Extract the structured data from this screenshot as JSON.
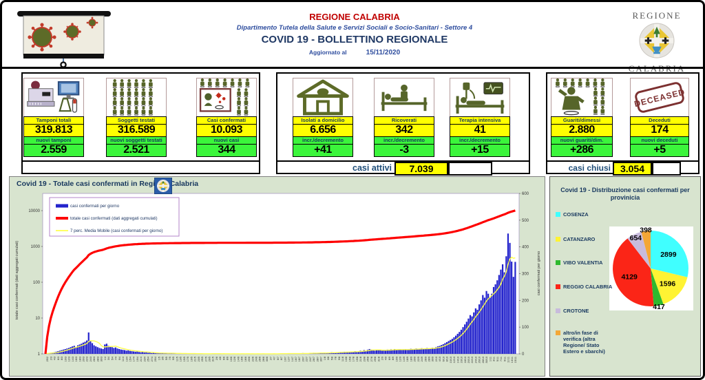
{
  "header": {
    "title1": "REGIONE CALABRIA",
    "subtitle": "Dipartimento Tutela della Salute e Servizi Sociali e Socio-Sanitari - Settore 4",
    "title2": "COVID 19 - BOLLETTINO REGIONALE",
    "updated_label": "Aggiornato al",
    "updated_date": "15/11/2020",
    "logo_region_top": "REGIONE",
    "logo_region_bottom": "CALABRIA"
  },
  "colors": {
    "header_red": "#c00000",
    "navy": "#17375e",
    "yellow_highlight": "#ffff00",
    "green_highlight": "#3bf53b",
    "panel_green": "#d8e4cf",
    "bar_blue": "#2323cc",
    "line_red": "#fe0000",
    "line_yellow": "#ffff4d"
  },
  "stats": {
    "cards": [
      {
        "title": "Tamponi totali",
        "value": "319.813",
        "sub_label": "nuovi tamponi",
        "sub_value": "2.559",
        "icon": "lab-tests-icon"
      },
      {
        "title": "Soggetti testati",
        "value": "316.589",
        "sub_label": "nuovi soggetti testati",
        "sub_value": "2.521",
        "icon": "people-grid-icon"
      },
      {
        "title": "Casi confermati",
        "value": "10.093",
        "sub_label": "nuovi casi",
        "sub_value": "344",
        "icon": "infected-person-icon"
      },
      {
        "title": "Isolati a domicilio",
        "value": "6.656",
        "sub_label": "incr./decremento",
        "sub_value": "+41",
        "icon": "home-icon"
      },
      {
        "title": "Ricoverati",
        "value": "342",
        "sub_label": "incr./decremento",
        "sub_value": "-3",
        "icon": "hospital-bed-icon"
      },
      {
        "title": "Terapia intensiva",
        "value": "41",
        "sub_label": "incr./decremento",
        "sub_value": "+15",
        "icon": "icu-bed-icon"
      },
      {
        "title": "Guariti/dimessi",
        "value": "2.880",
        "sub_label": "nuovi guariti/dim.",
        "sub_value": "+286",
        "icon": "recovered-person-icon"
      },
      {
        "title": "Deceduti",
        "value": "174",
        "sub_label": "nuovi deceduti",
        "sub_value": "+5",
        "icon": "deceased-stamp-icon"
      }
    ],
    "casi_attivi_label": "casi attivi",
    "casi_attivi_value": "7.039",
    "casi_chiusi_label": "casi chiusi",
    "casi_chiusi_value": "3.054",
    "deceased_stamp_text": "DECEASED"
  },
  "chart_data": [
    {
      "type": "bar",
      "title": "Covid 19 - Totale casi confermati in Regione Calabria",
      "x_months": [
        [
          2,
          28,
          29
        ],
        [
          3,
          1,
          31
        ],
        [
          4,
          1,
          30
        ],
        [
          5,
          1,
          31
        ],
        [
          6,
          1,
          30
        ],
        [
          7,
          1,
          31
        ],
        [
          8,
          1,
          31
        ],
        [
          9,
          1,
          30
        ],
        [
          10,
          1,
          31
        ],
        [
          11,
          1,
          15
        ]
      ],
      "tick_label_every": 2,
      "left_axis": {
        "label": "totale casi confermati (dati aggregati cumulati)",
        "scale": "log",
        "ticks": [
          1,
          10,
          100,
          1000,
          10000
        ]
      },
      "right_axis": {
        "label": "casi confermati per giorno",
        "min": 0,
        "max": 600,
        "ticks": [
          0,
          100,
          200,
          300,
          400,
          500,
          600
        ]
      },
      "series": [
        {
          "name": "casi confermati per giorno",
          "type": "bar",
          "axis": "right",
          "color": "#2323cc",
          "values": [
            1,
            2,
            3,
            4,
            5,
            6,
            8,
            10,
            12,
            14,
            16,
            18,
            20,
            22,
            25,
            28,
            30,
            26,
            32,
            35,
            38,
            42,
            45,
            50,
            80,
            50,
            40,
            32,
            28,
            25,
            22,
            20,
            18,
            35,
            38,
            30,
            28,
            25,
            22,
            24,
            20,
            18,
            16,
            15,
            14,
            12,
            13,
            11,
            10,
            9,
            8,
            10,
            7,
            6,
            8,
            5,
            6,
            4,
            5,
            3,
            4,
            3,
            2,
            3,
            2,
            4,
            2,
            3,
            1,
            2,
            3,
            1,
            2,
            1,
            2,
            1,
            1,
            2,
            1,
            0,
            1,
            2,
            1,
            0,
            1,
            1,
            0,
            1,
            0,
            1,
            0,
            1,
            0,
            2,
            1,
            0,
            1,
            0,
            0,
            1,
            0,
            1,
            0,
            0,
            1,
            0,
            0,
            1,
            0,
            1,
            0,
            0,
            1,
            0,
            0,
            1,
            0,
            0,
            1,
            0,
            0,
            1,
            0,
            0,
            0,
            1,
            0,
            1,
            0,
            0,
            1,
            2,
            1,
            0,
            1,
            2,
            1,
            1,
            2,
            1,
            0,
            1,
            2,
            3,
            2,
            1,
            2,
            3,
            2,
            4,
            3,
            2,
            3,
            4,
            3,
            4,
            3,
            5,
            4,
            6,
            5,
            4,
            6,
            5,
            7,
            6,
            8,
            7,
            6,
            8,
            9,
            7,
            10,
            9,
            8,
            12,
            10,
            14,
            12,
            15,
            18,
            16,
            14,
            12,
            15,
            13,
            14,
            12,
            15,
            13,
            16,
            14,
            17,
            15,
            18,
            16,
            15,
            17,
            14,
            16,
            18,
            15,
            17,
            19,
            16,
            18,
            20,
            17,
            19,
            21,
            18,
            20,
            22,
            19,
            21,
            23,
            22,
            25,
            28,
            30,
            33,
            36,
            40,
            44,
            48,
            52,
            56,
            62,
            68,
            75,
            82,
            90,
            100,
            110,
            120,
            132,
            145,
            140,
            155,
            170,
            165,
            185,
            200,
            220,
            210,
            235,
            225,
            210,
            225,
            250,
            260,
            275,
            295,
            315,
            335,
            305,
            365,
            450,
            415,
            345,
            288,
            344
          ]
        },
        {
          "name": "totale casi confermati (dati aggregati cumulati)",
          "type": "line",
          "axis": "left-log",
          "color": "#fe0000",
          "derived": "cumulative",
          "final_value": 10093
        },
        {
          "name": "7 perc. Media Mobile (casi confermati per giorno)",
          "type": "line",
          "axis": "right",
          "color": "#ffff4d",
          "derived": "moving-average-7"
        }
      ]
    },
    {
      "type": "pie",
      "title": "Covid 19 - Distribuzione casi confermati per provinicia",
      "legend_position": "left",
      "slices": [
        {
          "label": "COSENZA",
          "value": 2899,
          "color": "#40ffff"
        },
        {
          "label": "CATANZARO",
          "value": 1596,
          "color": "#fff333"
        },
        {
          "label": "VIBO VALENTIA",
          "value": 417,
          "color": "#2eb92e"
        },
        {
          "label": "REGGIO CALABRIA",
          "value": 4129,
          "color": "#fb2517"
        },
        {
          "label": "CROTONE",
          "value": 654,
          "color": "#c8bbdc"
        },
        {
          "label": "altro/in fase di verifica (altra Regione/ Stato Estero e sbarchi)",
          "value": 398,
          "color": "#f3a736"
        }
      ]
    }
  ]
}
